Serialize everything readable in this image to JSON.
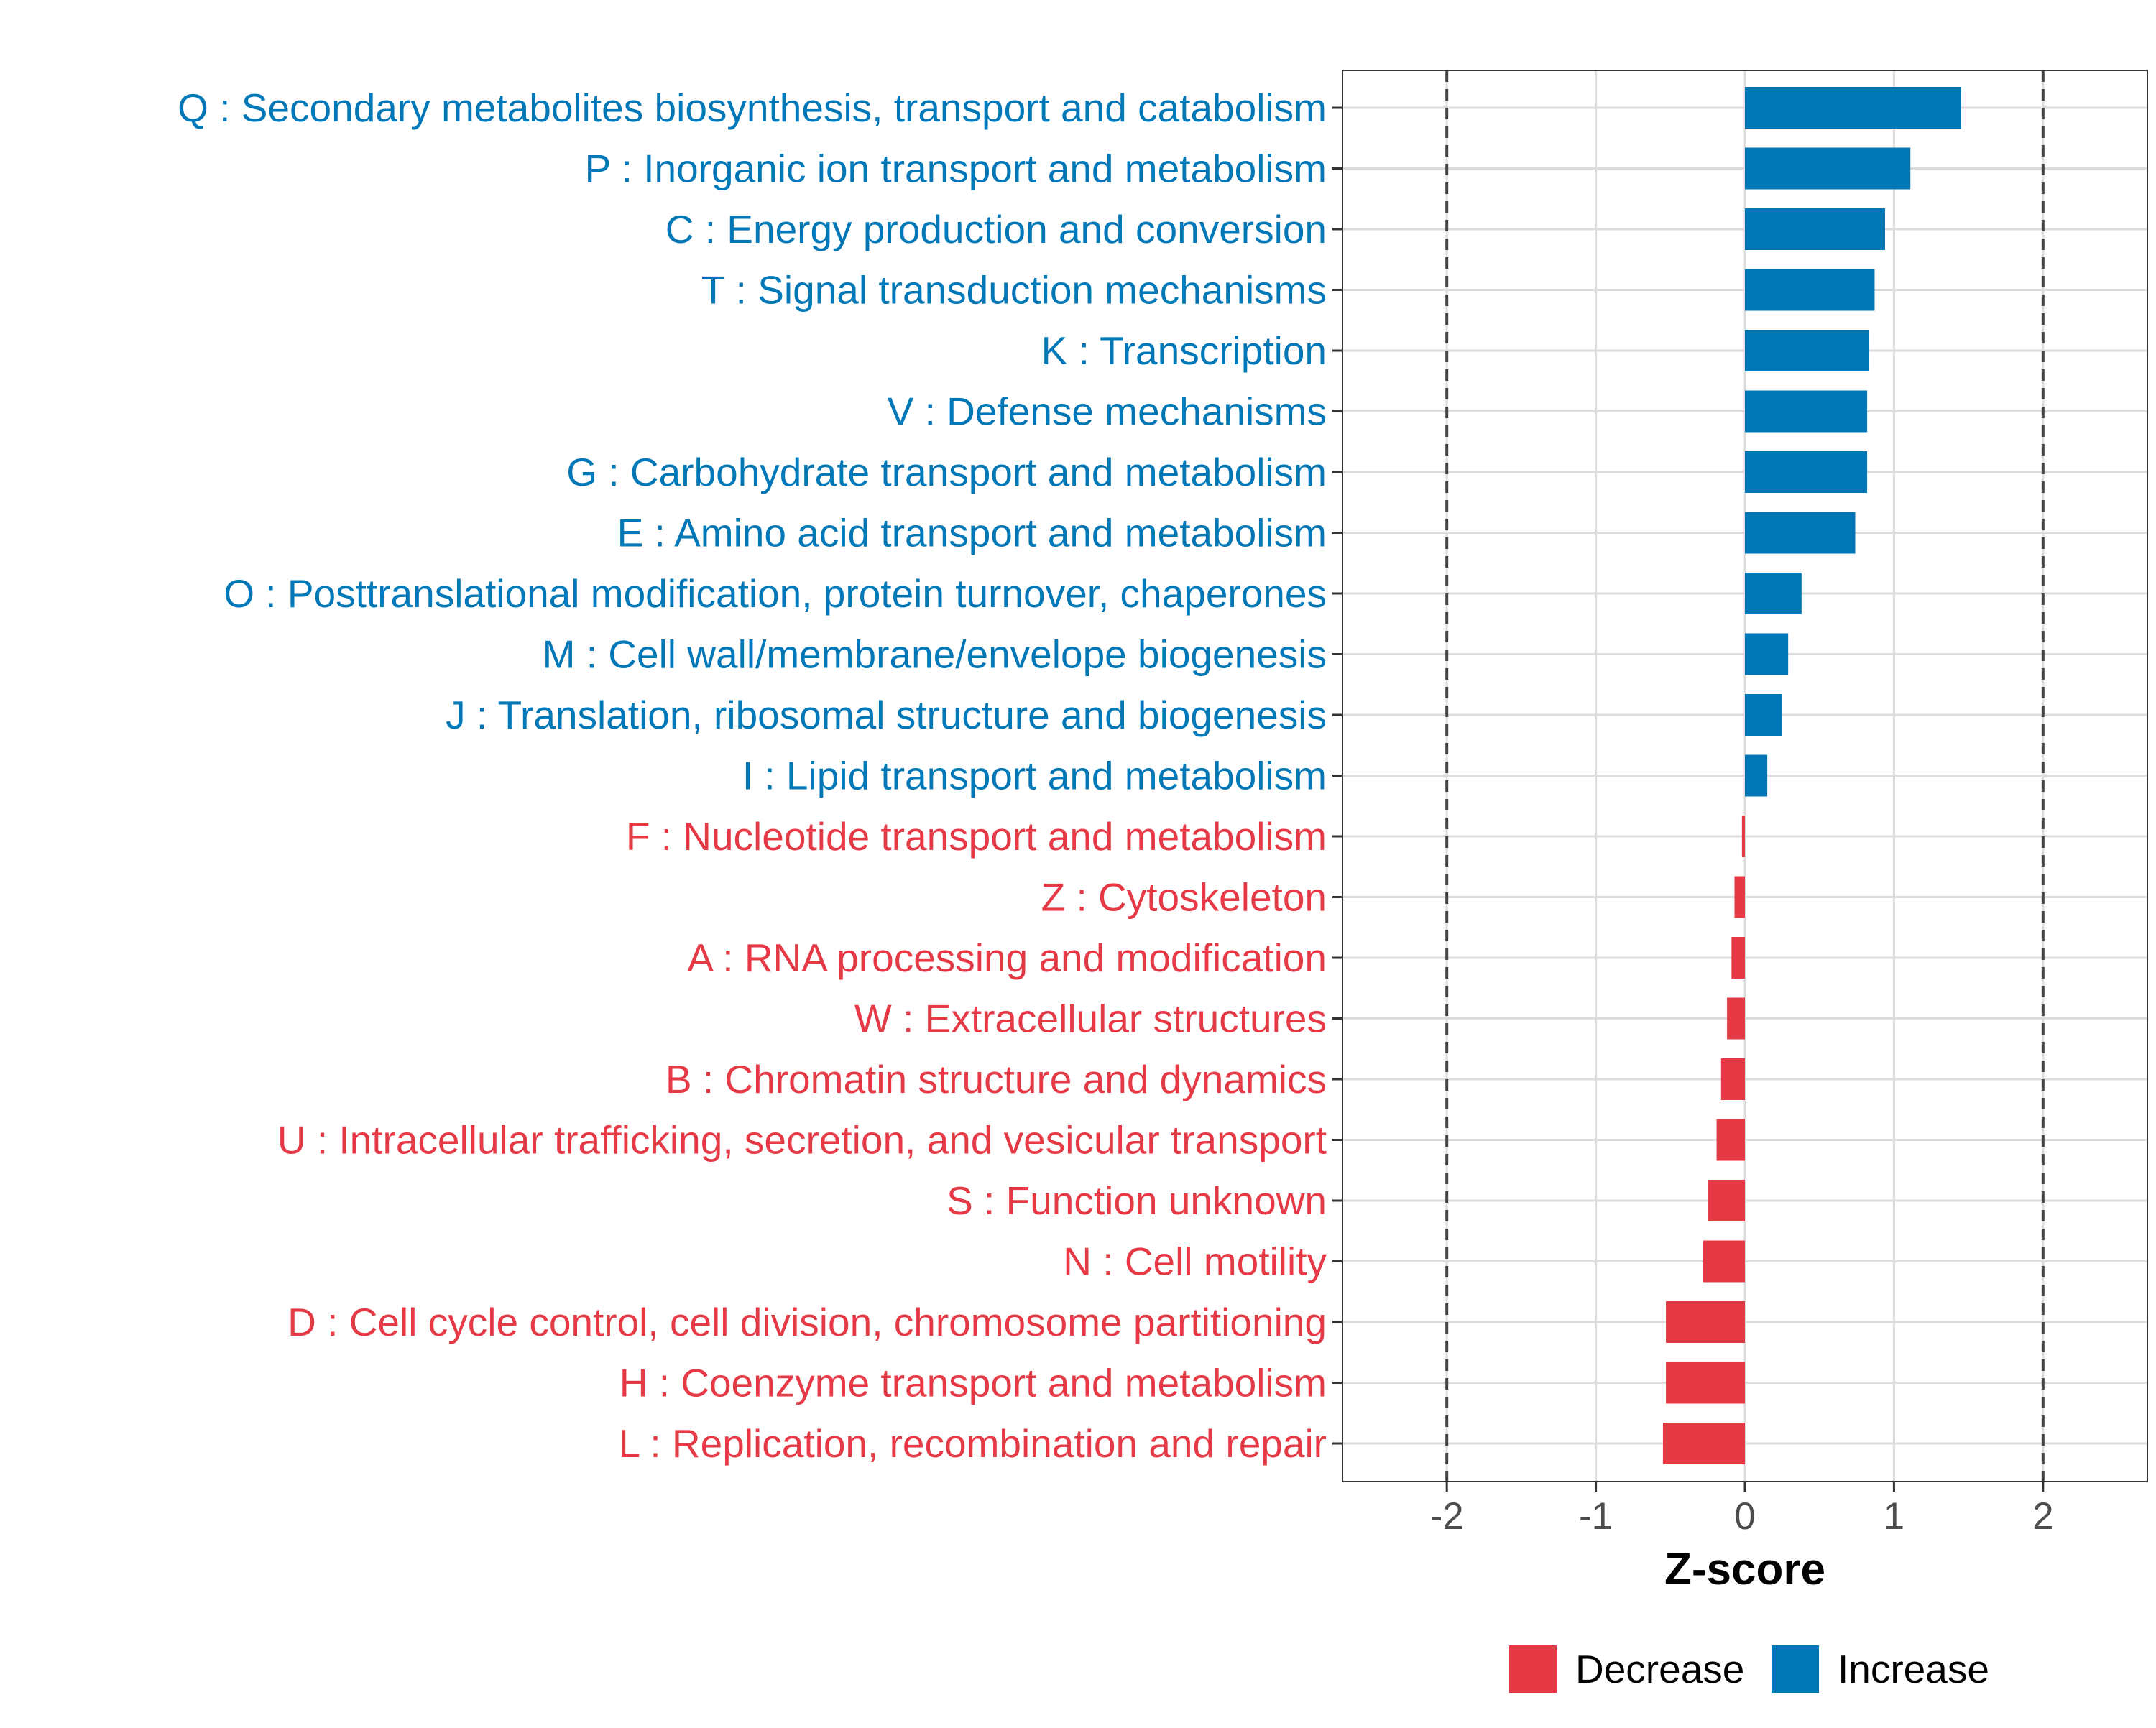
{
  "chart_data": {
    "type": "bar",
    "orientation": "horizontal",
    "categories": [
      "Q : Secondary metabolites biosynthesis, transport and catabolism",
      "P : Inorganic ion transport and metabolism",
      "C : Energy production and conversion",
      "T : Signal transduction mechanisms",
      "K : Transcription",
      "V : Defense mechanisms",
      "G : Carbohydrate transport and metabolism",
      "E : Amino acid transport and metabolism",
      "O : Posttranslational modification, protein turnover, chaperones",
      "M : Cell wall/membrane/envelope biogenesis",
      "J : Translation, ribosomal structure and biogenesis",
      "I : Lipid transport and metabolism",
      "F : Nucleotide transport and metabolism",
      "Z : Cytoskeleton",
      "A : RNA processing and modification",
      "W : Extracellular structures",
      "B : Chromatin structure and dynamics",
      "U : Intracellular trafficking, secretion, and vesicular transport",
      "S : Function unknown",
      "N : Cell motility",
      "D : Cell cycle control, cell division, chromosome partitioning",
      "H : Coenzyme transport and metabolism",
      "L : Replication, recombination and repair"
    ],
    "values": [
      1.45,
      1.11,
      0.94,
      0.87,
      0.83,
      0.82,
      0.82,
      0.74,
      0.38,
      0.29,
      0.25,
      0.15,
      -0.02,
      -0.07,
      -0.09,
      -0.12,
      -0.16,
      -0.19,
      -0.25,
      -0.28,
      -0.53,
      -0.53,
      -0.55
    ],
    "groups": [
      "Increase",
      "Increase",
      "Increase",
      "Increase",
      "Increase",
      "Increase",
      "Increase",
      "Increase",
      "Increase",
      "Increase",
      "Increase",
      "Increase",
      "Decrease",
      "Decrease",
      "Decrease",
      "Decrease",
      "Decrease",
      "Decrease",
      "Decrease",
      "Decrease",
      "Decrease",
      "Decrease",
      "Decrease"
    ],
    "title": "",
    "xlabel": "Z-score",
    "ylabel": "",
    "xlim": [
      -2.7,
      2.7
    ],
    "xticks": [
      -2,
      -1,
      0,
      1,
      2
    ],
    "xtick_labels": [
      "-2",
      "-1",
      "0",
      "1",
      "2"
    ],
    "reference_lines": [
      -2,
      2
    ],
    "grid": true,
    "legend": {
      "position": "bottom",
      "items": [
        {
          "label": "Decrease",
          "color": "#E63946"
        },
        {
          "label": "Increase",
          "color": "#0077B6"
        }
      ]
    },
    "colors": {
      "Decrease": "#E63946",
      "Increase": "#0077B6"
    }
  }
}
